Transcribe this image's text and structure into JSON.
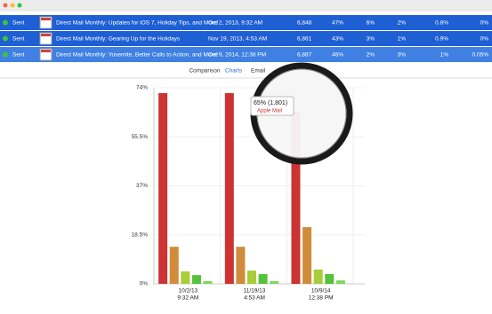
{
  "table": {
    "rows": [
      [
        "Sent",
        "Direct Mail Monthly: Updates for iOS 7, Holiday Tips, and More!",
        "Oct 2, 2013, 9:32 AM",
        "6,848",
        "47%",
        "6%",
        "2%",
        "0.8%",
        "0%"
      ],
      [
        "Sent",
        "Direct Mail Monthly: Gearing Up for the Holidays",
        "Nov 19, 2013, 4:53 AM",
        "6,861",
        "43%",
        "3%",
        "1%",
        "0.9%",
        "0%"
      ],
      [
        "Sent",
        "Direct Mail Monthly: Yosemite, Better Calls to Action, and More!",
        "Oct 9, 2014, 12:38 PM",
        "6,887",
        "46%",
        "2%",
        "3%",
        "1%",
        "0.05%"
      ]
    ]
  },
  "tabs": [
    "Comparison",
    "Charts",
    "Email"
  ],
  "chart_data": {
    "type": "bar",
    "categories": [
      [
        "10/2/13",
        "9:32 AM"
      ],
      [
        "11/19/13",
        "4:53 AM"
      ],
      [
        "10/9/14",
        "12:38 PM"
      ]
    ],
    "series": [
      {
        "name": "Apple Mail",
        "color": "#cc3333",
        "values": [
          72,
          72,
          65
        ],
        "value_labels": [
          null,
          null,
          "65% (1,801)"
        ]
      },
      {
        "color": "#d08c3a",
        "values": [
          14,
          14,
          21.4
        ]
      },
      {
        "color": "#a8cc3a",
        "values": [
          4.7,
          5,
          5.4
        ]
      },
      {
        "color": "#55c23a",
        "values": [
          3.3,
          3.7,
          3.7
        ]
      },
      {
        "color": "#7cd85a",
        "values": [
          1,
          1,
          1.3
        ]
      }
    ],
    "ylim": [
      0,
      74
    ],
    "yticks": [
      {
        "value": 0,
        "label": "0%"
      },
      {
        "value": 18.5,
        "label": "18.5%"
      },
      {
        "value": 37,
        "label": "37%"
      },
      {
        "value": 55.5,
        "label": "55.5%"
      },
      {
        "value": 74,
        "label": "74%"
      }
    ],
    "grid": true
  }
}
